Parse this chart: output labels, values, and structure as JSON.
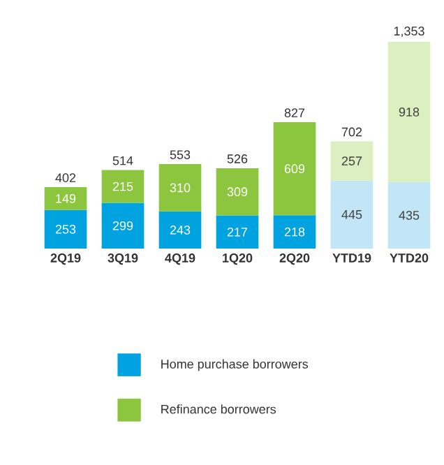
{
  "chart_data": {
    "type": "bar",
    "stacked": true,
    "data_labels": true,
    "legend": "bottom",
    "categories": [
      "2Q19",
      "3Q19",
      "4Q19",
      "1Q20",
      "2Q20",
      "YTD19",
      "YTD20"
    ],
    "series": [
      {
        "name": "Home purchase borrowers",
        "values": [
          253,
          299,
          243,
          217,
          218,
          445,
          435
        ],
        "colors": [
          "#00a3e0",
          "#00a3e0",
          "#00a3e0",
          "#00a3e0",
          "#00a3e0",
          "#c3e6f6",
          "#c3e6f6"
        ]
      },
      {
        "name": "Refinance borrowers",
        "values": [
          149,
          215,
          310,
          309,
          609,
          257,
          918
        ],
        "colors": [
          "#8cc63f",
          "#8cc63f",
          "#8cc63f",
          "#8cc63f",
          "#8cc63f",
          "#dcefc0",
          "#dcefc0"
        ]
      }
    ],
    "totals": [
      "402",
      "514",
      "553",
      "526",
      "827",
      "702",
      "1,353"
    ]
  }
}
